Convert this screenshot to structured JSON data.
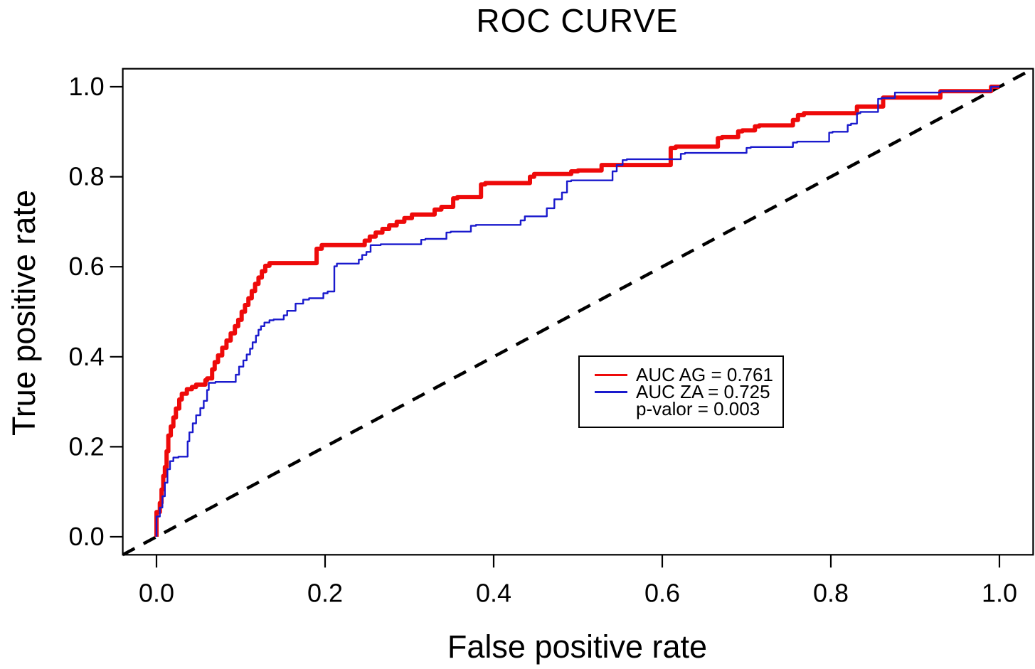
{
  "title": "ROC CURVE",
  "x_axis": {
    "label": "False positive rate"
  },
  "y_axis": {
    "label": "True positive rate"
  },
  "chart_data": {
    "type": "line",
    "subtype": "roc-step-curves",
    "title": "ROC CURVE",
    "xlabel": "False positive rate",
    "ylabel": "True positive rate",
    "xlim": [
      -0.04,
      1.04
    ],
    "ylim": [
      -0.04,
      1.04
    ],
    "grid": false,
    "frame_color": "#000000",
    "x_ticks": [
      {
        "value": 0.0,
        "label": "0.0"
      },
      {
        "value": 0.2,
        "label": "0.2"
      },
      {
        "value": 0.4,
        "label": "0.4"
      },
      {
        "value": 0.6,
        "label": "0.6"
      },
      {
        "value": 0.8,
        "label": "0.8"
      },
      {
        "value": 1.0,
        "label": "1.0"
      }
    ],
    "y_ticks": [
      {
        "value": 0.0,
        "label": "0.0"
      },
      {
        "value": 0.2,
        "label": "0.2"
      },
      {
        "value": 0.4,
        "label": "0.4"
      },
      {
        "value": 0.6,
        "label": "0.6"
      },
      {
        "value": 0.8,
        "label": "0.8"
      },
      {
        "value": 1.0,
        "label": "1.0"
      }
    ],
    "diagonal": {
      "from": [
        -0.04,
        -0.04
      ],
      "to": [
        1.04,
        1.04
      ],
      "style": "dashed",
      "color": "#000000"
    },
    "p_value": 0.003,
    "series": [
      {
        "name": "AG",
        "auc": 0.761,
        "color": "#ee0a0a",
        "points": [
          [
            0,
            0
          ],
          [
            0.004,
            0.055
          ],
          [
            0.006,
            0.075
          ],
          [
            0.008,
            0.105
          ],
          [
            0.01,
            0.135
          ],
          [
            0.012,
            0.155
          ],
          [
            0.014,
            0.19
          ],
          [
            0.017,
            0.225
          ],
          [
            0.02,
            0.245
          ],
          [
            0.023,
            0.265
          ],
          [
            0.027,
            0.285
          ],
          [
            0.03,
            0.305
          ],
          [
            0.036,
            0.318
          ],
          [
            0.042,
            0.328
          ],
          [
            0.047,
            0.333
          ],
          [
            0.058,
            0.338
          ],
          [
            0.06,
            0.348
          ],
          [
            0.066,
            0.352
          ],
          [
            0.069,
            0.372
          ],
          [
            0.073,
            0.388
          ],
          [
            0.078,
            0.403
          ],
          [
            0.083,
            0.42
          ],
          [
            0.088,
            0.436
          ],
          [
            0.093,
            0.452
          ],
          [
            0.097,
            0.468
          ],
          [
            0.101,
            0.482
          ],
          [
            0.105,
            0.5
          ],
          [
            0.109,
            0.515
          ],
          [
            0.113,
            0.53
          ],
          [
            0.117,
            0.546
          ],
          [
            0.121,
            0.562
          ],
          [
            0.125,
            0.576
          ],
          [
            0.129,
            0.59
          ],
          [
            0.134,
            0.602
          ],
          [
            0.14,
            0.608
          ],
          [
            0.19,
            0.608
          ],
          [
            0.196,
            0.64
          ],
          [
            0.247,
            0.648
          ],
          [
            0.253,
            0.658
          ],
          [
            0.26,
            0.667
          ],
          [
            0.268,
            0.676
          ],
          [
            0.276,
            0.684
          ],
          [
            0.285,
            0.692
          ],
          [
            0.294,
            0.7
          ],
          [
            0.303,
            0.708
          ],
          [
            0.33,
            0.716
          ],
          [
            0.338,
            0.727
          ],
          [
            0.352,
            0.733
          ],
          [
            0.357,
            0.752
          ],
          [
            0.385,
            0.755
          ],
          [
            0.39,
            0.783
          ],
          [
            0.443,
            0.786
          ],
          [
            0.448,
            0.8
          ],
          [
            0.492,
            0.806
          ],
          [
            0.5,
            0.812
          ],
          [
            0.528,
            0.814
          ],
          [
            0.533,
            0.826
          ],
          [
            0.61,
            0.826
          ],
          [
            0.616,
            0.864
          ],
          [
            0.666,
            0.867
          ],
          [
            0.671,
            0.886
          ],
          [
            0.69,
            0.888
          ],
          [
            0.695,
            0.901
          ],
          [
            0.71,
            0.903
          ],
          [
            0.715,
            0.912
          ],
          [
            0.755,
            0.914
          ],
          [
            0.761,
            0.926
          ],
          [
            0.768,
            0.937
          ],
          [
            0.776,
            0.941
          ],
          [
            0.831,
            0.941
          ],
          [
            0.837,
            0.956
          ],
          [
            0.862,
            0.956
          ],
          [
            0.868,
            0.976
          ],
          [
            0.93,
            0.976
          ],
          [
            0.934,
            0.99
          ],
          [
            0.99,
            0.99
          ],
          [
            0.993,
            1.0
          ],
          [
            1.0,
            1.0
          ]
        ]
      },
      {
        "name": "ZA",
        "auc": 0.725,
        "color": "#1a1acd",
        "points": [
          [
            0,
            0
          ],
          [
            0.004,
            0.045
          ],
          [
            0.007,
            0.065
          ],
          [
            0.01,
            0.09
          ],
          [
            0.013,
            0.12
          ],
          [
            0.016,
            0.15
          ],
          [
            0.02,
            0.168
          ],
          [
            0.026,
            0.176
          ],
          [
            0.037,
            0.178
          ],
          [
            0.039,
            0.212
          ],
          [
            0.043,
            0.232
          ],
          [
            0.047,
            0.252
          ],
          [
            0.052,
            0.27
          ],
          [
            0.056,
            0.286
          ],
          [
            0.06,
            0.302
          ],
          [
            0.062,
            0.326
          ],
          [
            0.07,
            0.342
          ],
          [
            0.094,
            0.344
          ],
          [
            0.098,
            0.36
          ],
          [
            0.103,
            0.378
          ],
          [
            0.107,
            0.392
          ],
          [
            0.111,
            0.405
          ],
          [
            0.114,
            0.418
          ],
          [
            0.118,
            0.432
          ],
          [
            0.121,
            0.447
          ],
          [
            0.124,
            0.46
          ],
          [
            0.128,
            0.468
          ],
          [
            0.134,
            0.476
          ],
          [
            0.139,
            0.481
          ],
          [
            0.151,
            0.483
          ],
          [
            0.155,
            0.492
          ],
          [
            0.165,
            0.502
          ],
          [
            0.174,
            0.518
          ],
          [
            0.181,
            0.527
          ],
          [
            0.198,
            0.53
          ],
          [
            0.203,
            0.541
          ],
          [
            0.211,
            0.545
          ],
          [
            0.214,
            0.601
          ],
          [
            0.24,
            0.607
          ],
          [
            0.244,
            0.616
          ],
          [
            0.249,
            0.626
          ],
          [
            0.254,
            0.633
          ],
          [
            0.266,
            0.648
          ],
          [
            0.314,
            0.65
          ],
          [
            0.319,
            0.66
          ],
          [
            0.344,
            0.662
          ],
          [
            0.349,
            0.676
          ],
          [
            0.373,
            0.678
          ],
          [
            0.379,
            0.691
          ],
          [
            0.432,
            0.693
          ],
          [
            0.437,
            0.703
          ],
          [
            0.463,
            0.712
          ],
          [
            0.472,
            0.73
          ],
          [
            0.481,
            0.75
          ],
          [
            0.487,
            0.765
          ],
          [
            0.492,
            0.79
          ],
          [
            0.541,
            0.792
          ],
          [
            0.546,
            0.812
          ],
          [
            0.553,
            0.826
          ],
          [
            0.558,
            0.837
          ],
          [
            0.622,
            0.839
          ],
          [
            0.627,
            0.851
          ],
          [
            0.7,
            0.853
          ],
          [
            0.705,
            0.864
          ],
          [
            0.755,
            0.866
          ],
          [
            0.76,
            0.876
          ],
          [
            0.798,
            0.878
          ],
          [
            0.802,
            0.898
          ],
          [
            0.82,
            0.9
          ],
          [
            0.824,
            0.915
          ],
          [
            0.831,
            0.918
          ],
          [
            0.835,
            0.941
          ],
          [
            0.856,
            0.944
          ],
          [
            0.86,
            0.973
          ],
          [
            0.876,
            0.975
          ],
          [
            0.88,
            0.987
          ],
          [
            0.93,
            0.987
          ],
          [
            0.934,
            0.99
          ],
          [
            0.99,
            0.99
          ],
          [
            0.993,
            1.0
          ],
          [
            1.0,
            1.0
          ]
        ]
      }
    ],
    "legend": {
      "position": "center-right",
      "rows": [
        {
          "label": "AUC AG = 0.761",
          "color": "#ee0a0a"
        },
        {
          "label": "AUC ZA = 0.725",
          "color": "#1a1acd"
        },
        {
          "label": "p-valor = 0.003",
          "color": null
        }
      ]
    }
  }
}
